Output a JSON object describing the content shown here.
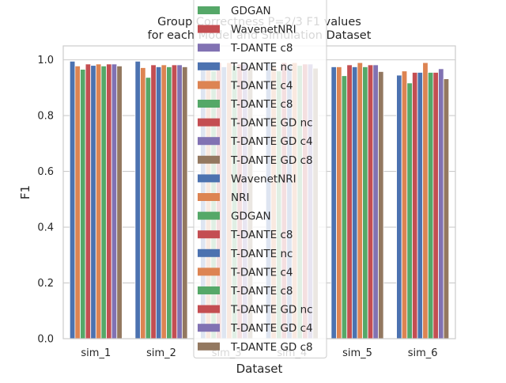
{
  "chart_data": {
    "type": "bar",
    "title_lines": [
      "Group Correctness P=2/3 F1 values",
      "for each Model and Simulation Dataset"
    ],
    "xlabel": "Dataset",
    "ylabel": "F1",
    "ylim": [
      0,
      1.05
    ],
    "yticks": [
      "0.0",
      "0.2",
      "0.4",
      "0.6",
      "0.8",
      "1.0"
    ],
    "grid": true,
    "legend_position": "top-center",
    "categories": [
      "sim_1",
      "sim_2",
      "sim_3",
      "sim_4",
      "sim_5",
      "sim_6"
    ],
    "series": [
      {
        "name": "WavenetNRI",
        "color": "#4c72b0",
        "values": [
          0.995,
          0.995,
          0.99,
          0.99,
          0.975,
          0.945
        ]
      },
      {
        "name": "NRI",
        "color": "#dd8452",
        "values": [
          0.978,
          0.972,
          0.975,
          0.975,
          0.975,
          0.96
        ]
      },
      {
        "name": "GDGAN",
        "color": "#55a868",
        "values": [
          0.966,
          0.937,
          0.96,
          0.96,
          0.943,
          0.917
        ]
      },
      {
        "name": "T-DANTE c8",
        "color": "#c44e52",
        "values": [
          0.985,
          0.982,
          0.99,
          0.99,
          0.982,
          0.955
        ]
      },
      {
        "name": "T-DANTE nc",
        "color": "#4c72b0",
        "values": [
          0.98,
          0.975,
          0.975,
          0.98,
          0.975,
          0.955
        ]
      },
      {
        "name": "T-DANTE c4",
        "color": "#dd8452",
        "values": [
          0.985,
          0.982,
          0.99,
          0.99,
          0.99,
          0.99
        ]
      },
      {
        "name": "T-DANTE c8",
        "color": "#55a868",
        "values": [
          0.978,
          0.975,
          0.98,
          0.98,
          0.975,
          0.955
        ]
      },
      {
        "name": "T-DANTE GD nc",
        "color": "#c44e52",
        "values": [
          0.985,
          0.982,
          0.985,
          0.985,
          0.982,
          0.955
        ]
      },
      {
        "name": "T-DANTE GD c4",
        "color": "#8172b3",
        "values": [
          0.985,
          0.982,
          0.985,
          0.985,
          0.982,
          0.968
        ]
      },
      {
        "name": "T-DANTE GD c8",
        "color": "#937860",
        "values": [
          0.978,
          0.975,
          0.97,
          0.97,
          0.958,
          0.932
        ]
      }
    ],
    "drawn_bar_series": [
      0,
      1,
      2,
      3,
      4,
      5,
      6
    ],
    "legend": [
      {
        "label": "GDGAN",
        "color": "#55a868"
      },
      {
        "label": "WavenetNRI",
        "color": "#c44e52"
      },
      {
        "label": "T-DANTE c8",
        "color": "#8172b3"
      },
      {
        "label": "T-DANTE nc",
        "color": "#4c72b0"
      },
      {
        "label": "T-DANTE c4",
        "color": "#dd8452"
      },
      {
        "label": "T-DANTE c8",
        "color": "#55a868"
      },
      {
        "label": "T-DANTE GD nc",
        "color": "#c44e52"
      },
      {
        "label": "T-DANTE GD c4",
        "color": "#8172b3"
      },
      {
        "label": "T-DANTE GD c8",
        "color": "#937860"
      },
      {
        "label": "WavenetNRI",
        "color": "#4c72b0"
      },
      {
        "label": "NRI",
        "color": "#dd8452"
      },
      {
        "label": "GDGAN",
        "color": "#55a868"
      },
      {
        "label": "T-DANTE c8",
        "color": "#c44e52"
      },
      {
        "label": "T-DANTE nc",
        "color": "#4c72b0"
      },
      {
        "label": "T-DANTE c4",
        "color": "#dd8452"
      },
      {
        "label": "T-DANTE c8",
        "color": "#55a868"
      },
      {
        "label": "T-DANTE GD nc",
        "color": "#c44e52"
      },
      {
        "label": "T-DANTE GD c4",
        "color": "#8172b3"
      },
      {
        "label": "T-DANTE GD c8",
        "color": "#937860"
      }
    ]
  }
}
